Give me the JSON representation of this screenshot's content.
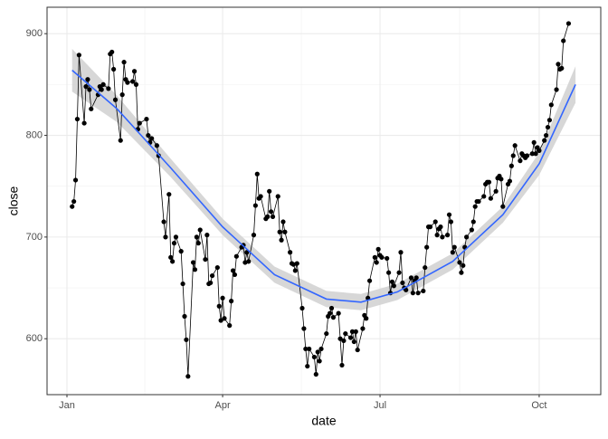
{
  "chart_data": {
    "type": "line",
    "x_label": "date",
    "y_label": "close",
    "x": [
      3,
      4,
      5,
      6,
      7,
      10,
      11,
      12,
      13,
      14,
      18,
      19,
      20,
      21,
      24,
      25,
      26,
      27,
      28,
      31,
      32,
      33,
      34,
      35,
      38,
      39,
      40,
      41,
      42,
      46,
      47,
      48,
      49,
      52,
      53,
      56,
      57,
      59,
      60,
      61,
      62,
      63,
      66,
      67,
      68,
      69,
      70,
      73,
      74,
      75,
      76,
      77,
      80,
      81,
      82,
      83,
      84,
      87,
      88,
      89,
      90,
      91,
      94,
      95,
      96,
      97,
      98,
      101,
      102,
      103,
      104,
      105,
      108,
      109,
      110,
      111,
      112,
      115,
      116,
      117,
      118,
      119,
      122,
      123,
      124,
      125,
      126,
      129,
      130,
      131,
      132,
      133,
      136,
      137,
      138,
      139,
      140,
      143,
      144,
      145,
      146,
      147,
      150,
      151,
      152,
      153,
      154,
      157,
      158,
      159,
      160,
      161,
      164,
      165,
      166,
      167,
      168,
      171,
      172,
      173,
      174,
      175,
      178,
      179,
      180,
      181,
      182,
      185,
      186,
      187,
      188,
      189,
      192,
      193,
      194,
      195,
      196,
      199,
      200,
      201,
      202,
      203,
      206,
      207,
      208,
      209,
      210,
      213,
      214,
      215,
      216,
      217,
      220,
      221,
      222,
      223,
      224,
      227,
      228,
      229,
      230,
      231,
      234,
      235,
      236,
      237,
      238,
      241,
      242,
      243,
      244,
      245,
      248,
      249,
      250,
      251,
      252,
      255,
      256,
      257,
      258,
      259,
      262,
      263,
      264,
      265,
      266,
      269,
      270,
      271,
      272,
      273,
      276,
      277,
      278,
      279,
      280,
      283,
      284,
      285,
      286,
      287,
      290
    ],
    "values": [
      730,
      735,
      756,
      816,
      879,
      812,
      848,
      855,
      845,
      826,
      840,
      848,
      845,
      850,
      846,
      880,
      882,
      865,
      835,
      795,
      840,
      872,
      855,
      852,
      853,
      863,
      850,
      806,
      812,
      816,
      800,
      793,
      797,
      790,
      780,
      715,
      700,
      742,
      680,
      676,
      694,
      700,
      686,
      654,
      622,
      599,
      563,
      675,
      668,
      700,
      694,
      707,
      678,
      702,
      654,
      655,
      662,
      670,
      632,
      618,
      640,
      620,
      613,
      637,
      667,
      663,
      681,
      690,
      692,
      675,
      685,
      676,
      702,
      731,
      762,
      738,
      740,
      718,
      720,
      745,
      725,
      720,
      740,
      705,
      697,
      715,
      705,
      685,
      674,
      673,
      667,
      674,
      630,
      610,
      590,
      573,
      590,
      582,
      565,
      587,
      578,
      590,
      605,
      622,
      625,
      630,
      621,
      625,
      600,
      574,
      598,
      605,
      601,
      607,
      597,
      607,
      589,
      610,
      623,
      620,
      640,
      657,
      680,
      675,
      688,
      682,
      680,
      679,
      665,
      645,
      656,
      652,
      665,
      685,
      655,
      650,
      648,
      660,
      645,
      657,
      660,
      645,
      647,
      670,
      690,
      710,
      710,
      715,
      702,
      708,
      710,
      700,
      702,
      722,
      715,
      685,
      690,
      675,
      665,
      672,
      690,
      700,
      707,
      715,
      730,
      735,
      735,
      740,
      752,
      754,
      754,
      738,
      745,
      758,
      760,
      757,
      730,
      752,
      755,
      770,
      780,
      790,
      775,
      782,
      780,
      778,
      780,
      782,
      793,
      782,
      788,
      785,
      795,
      800,
      808,
      815,
      830,
      845,
      870,
      865,
      866,
      893,
      910
    ],
    "color": "#000000",
    "smooth": {
      "color": "#3366FF",
      "band_color": "#D3D3D3",
      "x": [
        3,
        29,
        60,
        90,
        120,
        150,
        170,
        191,
        223,
        252,
        273,
        294
      ],
      "values": [
        864,
        826,
        768,
        710,
        663,
        639,
        636,
        646,
        676,
        722,
        772,
        850
      ],
      "lower": [
        843,
        813,
        759,
        702,
        655,
        631,
        628,
        638,
        668,
        714,
        761,
        832
      ],
      "upper": [
        885,
        839,
        777,
        718,
        671,
        647,
        644,
        654,
        684,
        730,
        783,
        868
      ]
    },
    "xlim": [
      -11.5,
      308.6
    ],
    "ylim": [
      545,
      926
    ],
    "xticks": [
      {
        "value": 0,
        "label": "Jan"
      },
      {
        "value": 90,
        "label": "Apr"
      },
      {
        "value": 181,
        "label": "Jul"
      },
      {
        "value": 273,
        "label": "Oct"
      }
    ],
    "yticks": [
      600,
      700,
      800,
      900
    ],
    "xminor": [
      45,
      135.5,
      227
    ],
    "yminor": [
      650,
      750,
      850
    ],
    "grid": true
  }
}
